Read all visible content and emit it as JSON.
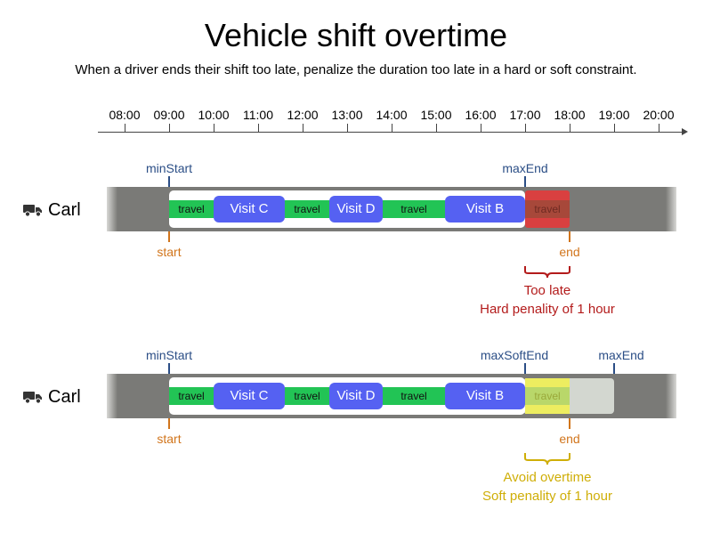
{
  "title": "Vehicle shift overtime",
  "subtitle": "When a driver ends their shift too late, penalize the duration too late in a hard or soft constraint.",
  "timeline": {
    "ticks": [
      "08:00",
      "09:00",
      "10:00",
      "11:00",
      "12:00",
      "13:00",
      "14:00",
      "15:00",
      "16:00",
      "17:00",
      "18:00",
      "19:00",
      "20:00"
    ]
  },
  "hard_example": {
    "vehicle": "Carl",
    "vehicle_icon": "truck-icon",
    "min_start_label": "minStart",
    "max_end_label": "maxEnd",
    "start_label": "start",
    "end_label": "end",
    "travel_label": "travel",
    "visits": [
      "Visit C",
      "Visit D",
      "Visit B"
    ],
    "note_line1": "Too late",
    "note_line2": "Hard penality of 1 hour",
    "note_color": "#b31b1b"
  },
  "soft_example": {
    "vehicle": "Carl",
    "vehicle_icon": "truck-icon",
    "min_start_label": "minStart",
    "max_soft_end_label": "maxSoftEnd",
    "max_end_label": "maxEnd",
    "start_label": "start",
    "end_label": "end",
    "travel_label": "travel",
    "visits": [
      "Visit C",
      "Visit D",
      "Visit B"
    ],
    "note_line1": "Avoid overtime",
    "note_line2": "Soft penality of 1 hour",
    "note_color": "#cfae07"
  },
  "colors": {
    "travel": "#22c455",
    "visit": "#5561f2",
    "bound_marker": "#2b4e86",
    "actual_marker": "#d1751c",
    "hard_penalty": "#d94040",
    "soft_penalty": "#eded60"
  }
}
